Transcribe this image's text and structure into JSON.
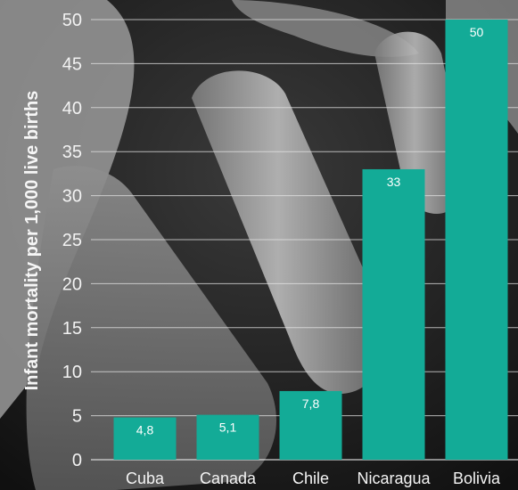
{
  "chart_data": {
    "type": "bar",
    "categories": [
      "Cuba",
      "Canada",
      "Chile",
      "Nicaragua",
      "Bolivia"
    ],
    "values": [
      4.8,
      5.1,
      7.8,
      33,
      50
    ],
    "value_labels": [
      "4,8",
      "5,1",
      "7,8",
      "33",
      "50"
    ],
    "title": "",
    "xlabel": "",
    "ylabel": "Infant mortality per 1,000 live births",
    "ylim": [
      0,
      50
    ],
    "yticks": [
      0,
      5,
      10,
      15,
      20,
      25,
      30,
      35,
      40,
      45,
      50
    ],
    "grid": true,
    "legend": "none",
    "colors": {
      "bar": "#13ab97",
      "grid": "#e6e6e6",
      "text": "#f2f2f2"
    }
  },
  "background": {
    "description_icon": "photo-of-hands"
  }
}
